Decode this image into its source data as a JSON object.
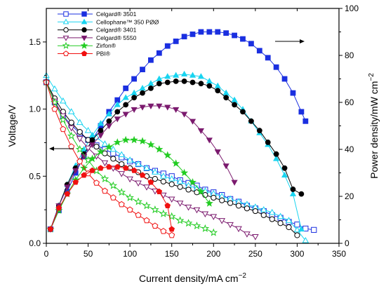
{
  "chart_data": {
    "type": "scatter",
    "xlabel": "Current density/mA cm",
    "xlabel_sup": "−2",
    "ylabel_left": "Voltage/V",
    "ylabel_right": "Power density/mW cm",
    "ylabel_right_sup": "−2",
    "xlim": [
      0,
      350
    ],
    "ylim_left": [
      0,
      1.75
    ],
    "ylim_right": [
      0,
      100
    ],
    "x_ticks": [
      "0",
      "50",
      "100",
      "150",
      "200",
      "250",
      "300",
      "350"
    ],
    "y_left_ticks": [
      "0.0",
      "0.5",
      "1.0",
      "1.5"
    ],
    "y_right_ticks": [
      "0",
      "20",
      "40",
      "60",
      "80",
      "100"
    ],
    "legend_position": "top-left",
    "series": [
      {
        "name": "Celgard® 3501",
        "color": "#1a2fe0",
        "marker": "square",
        "voltage": {
          "x": [
            0,
            10,
            20,
            30,
            40,
            50,
            60,
            70,
            80,
            90,
            100,
            110,
            120,
            130,
            140,
            150,
            160,
            170,
            180,
            190,
            200,
            210,
            220,
            230,
            240,
            250,
            260,
            270,
            280,
            290,
            300,
            310,
            320
          ],
          "y": [
            1.2,
            1.05,
            0.95,
            0.88,
            0.82,
            0.77,
            0.73,
            0.7,
            0.67,
            0.64,
            0.61,
            0.59,
            0.56,
            0.54,
            0.52,
            0.5,
            0.47,
            0.45,
            0.43,
            0.4,
            0.38,
            0.36,
            0.33,
            0.31,
            0.28,
            0.26,
            0.24,
            0.21,
            0.19,
            0.16,
            0.14,
            0.11,
            0.1
          ]
        },
        "power": {
          "x": [
            5,
            15,
            25,
            35,
            45,
            55,
            65,
            75,
            85,
            95,
            105,
            115,
            125,
            135,
            145,
            155,
            165,
            175,
            185,
            195,
            205,
            215,
            225,
            235,
            245,
            255,
            265,
            275,
            285,
            295,
            305,
            310
          ],
          "y": [
            6,
            14,
            22,
            30,
            37,
            44,
            50,
            56,
            61,
            66,
            70,
            74,
            78,
            81,
            84,
            86,
            88,
            89,
            90,
            90,
            90,
            89.5,
            88.5,
            87,
            85,
            82,
            79,
            75,
            70,
            64,
            56,
            52
          ]
        }
      },
      {
        "name": "Cellophane™ 350 PØØ",
        "color": "#19d4f0",
        "marker": "triangle",
        "voltage": {
          "x": [
            0,
            10,
            20,
            30,
            40,
            50,
            60,
            70,
            80,
            90,
            100,
            110,
            120,
            130,
            140,
            150,
            160,
            170,
            180,
            190,
            200,
            210,
            220,
            230,
            240,
            250,
            260,
            270,
            280,
            290,
            300,
            310
          ],
          "y": [
            1.25,
            1.15,
            1.06,
            0.98,
            0.9,
            0.84,
            0.79,
            0.74,
            0.7,
            0.66,
            0.62,
            0.59,
            0.56,
            0.53,
            0.5,
            0.48,
            0.46,
            0.43,
            0.41,
            0.39,
            0.37,
            0.35,
            0.33,
            0.31,
            0.29,
            0.27,
            0.25,
            0.23,
            0.2,
            0.17,
            0.1,
            0.02
          ]
        },
        "power": {
          "x": [
            5,
            15,
            25,
            35,
            45,
            55,
            65,
            75,
            85,
            95,
            105,
            115,
            125,
            135,
            145,
            155,
            165,
            175,
            185,
            195,
            205,
            215,
            225,
            235,
            245,
            255,
            265,
            275,
            285,
            295,
            305
          ],
          "y": [
            6,
            16,
            25,
            33,
            40,
            46,
            51,
            55,
            59,
            62,
            64,
            66,
            68,
            70,
            71,
            71.5,
            72,
            71.5,
            71,
            69,
            67,
            64,
            61,
            57,
            52,
            47,
            42,
            36,
            29,
            21,
            6
          ]
        }
      },
      {
        "name": "Celgard® 3401",
        "color": "#000000",
        "marker": "circle",
        "voltage": {
          "x": [
            0,
            10,
            20,
            30,
            40,
            50,
            60,
            70,
            80,
            90,
            100,
            110,
            120,
            130,
            140,
            150,
            160,
            170,
            180,
            190,
            200,
            210,
            220,
            230,
            240,
            250,
            260,
            270,
            280,
            290,
            300
          ],
          "y": [
            1.2,
            1.08,
            0.98,
            0.9,
            0.83,
            0.77,
            0.72,
            0.67,
            0.63,
            0.59,
            0.56,
            0.53,
            0.5,
            0.48,
            0.46,
            0.44,
            0.42,
            0.4,
            0.38,
            0.36,
            0.34,
            0.32,
            0.3,
            0.28,
            0.26,
            0.24,
            0.21,
            0.18,
            0.15,
            0.12,
            0.06
          ]
        },
        "power": {
          "x": [
            5,
            15,
            25,
            35,
            45,
            55,
            65,
            75,
            85,
            95,
            105,
            115,
            125,
            135,
            145,
            155,
            165,
            175,
            185,
            195,
            205,
            215,
            225,
            235,
            245,
            255,
            265,
            275,
            285,
            295,
            305
          ],
          "y": [
            6,
            16,
            25,
            32,
            38,
            44,
            48,
            52,
            56,
            59,
            62,
            64,
            66,
            68,
            68.5,
            69,
            69,
            68.5,
            68,
            67,
            65,
            62,
            59,
            56,
            52,
            48,
            43,
            38,
            32,
            23,
            21
          ]
        }
      },
      {
        "name": "Celgard® 5550",
        "color": "#7b1a6e",
        "marker": "triangle-down",
        "voltage": {
          "x": [
            0,
            10,
            20,
            30,
            40,
            50,
            60,
            70,
            80,
            90,
            100,
            110,
            120,
            130,
            140,
            150,
            160,
            170,
            180,
            190,
            200,
            210,
            220,
            230,
            240,
            250
          ],
          "y": [
            1.2,
            1.06,
            0.95,
            0.86,
            0.78,
            0.71,
            0.65,
            0.6,
            0.56,
            0.52,
            0.48,
            0.45,
            0.42,
            0.39,
            0.36,
            0.33,
            0.3,
            0.27,
            0.25,
            0.22,
            0.2,
            0.17,
            0.14,
            0.11,
            0.07,
            0.05
          ]
        },
        "power": {
          "x": [
            5,
            15,
            25,
            35,
            45,
            55,
            65,
            75,
            85,
            95,
            105,
            115,
            125,
            135,
            145,
            155,
            165,
            175,
            185,
            195,
            205,
            215,
            225
          ],
          "y": [
            6,
            16,
            24,
            31,
            37,
            42,
            46,
            50,
            53,
            55,
            57,
            58,
            58.5,
            58.5,
            58,
            57,
            55,
            52,
            48,
            44,
            39,
            33,
            26
          ]
        }
      },
      {
        "name": "Zirfon®",
        "color": "#22cc22",
        "marker": "star",
        "voltage": {
          "x": [
            0,
            10,
            20,
            30,
            40,
            50,
            60,
            70,
            80,
            90,
            100,
            110,
            120,
            130,
            140,
            150,
            160,
            170,
            180,
            190,
            200
          ],
          "y": [
            1.2,
            1.05,
            0.92,
            0.8,
            0.7,
            0.62,
            0.54,
            0.48,
            0.43,
            0.38,
            0.34,
            0.31,
            0.28,
            0.25,
            0.22,
            0.2,
            0.17,
            0.15,
            0.13,
            0.11,
            0.08
          ]
        },
        "power": {
          "x": [
            5,
            15,
            25,
            35,
            45,
            55,
            65,
            75,
            85,
            95,
            105,
            115,
            125,
            135,
            145,
            155,
            165,
            175,
            185,
            195
          ],
          "y": [
            6,
            14,
            21,
            27,
            32,
            36,
            39,
            41,
            43,
            44,
            44,
            43.5,
            42,
            40,
            37.5,
            34,
            30,
            26,
            22,
            17
          ]
        }
      },
      {
        "name": "PBI®",
        "color": "#f01010",
        "marker": "pentagon",
        "voltage": {
          "x": [
            0,
            10,
            20,
            30,
            40,
            50,
            60,
            70,
            80,
            90,
            100,
            110,
            120,
            130,
            140,
            150
          ],
          "y": [
            1.2,
            1.0,
            0.85,
            0.72,
            0.61,
            0.52,
            0.45,
            0.39,
            0.34,
            0.29,
            0.25,
            0.21,
            0.17,
            0.13,
            0.09,
            0.06
          ]
        },
        "power": {
          "x": [
            5,
            15,
            25,
            35,
            45,
            55,
            65,
            75,
            85,
            95,
            105,
            115,
            125,
            135,
            145,
            150
          ],
          "y": [
            6,
            15,
            21,
            26,
            29,
            31,
            32,
            32.5,
            32.5,
            32,
            31,
            29,
            26,
            22,
            16,
            6
          ]
        }
      }
    ],
    "arrows": [
      {
        "target_axis": "left",
        "direction": "left"
      },
      {
        "target_axis": "right",
        "direction": "right"
      }
    ]
  }
}
